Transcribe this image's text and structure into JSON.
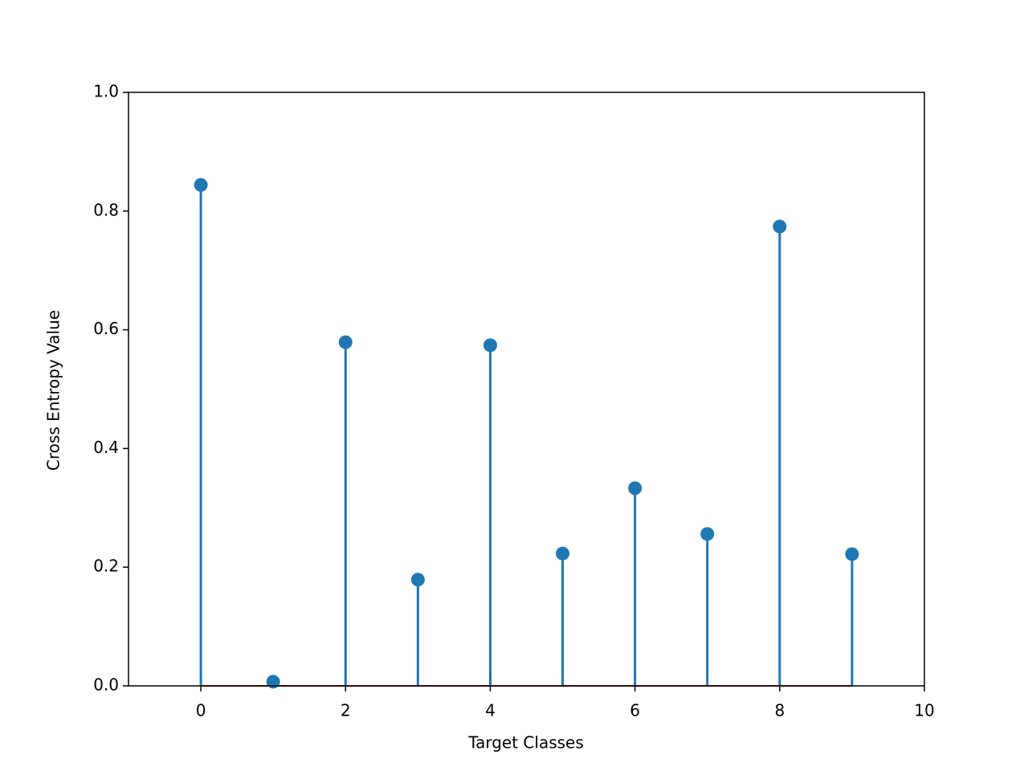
{
  "chart_data": {
    "type": "stem",
    "xlabel": "Target Classes",
    "ylabel": "Cross Entropy Value",
    "x": [
      0,
      1,
      2,
      3,
      4,
      5,
      6,
      7,
      8,
      9
    ],
    "values": [
      0.844,
      0.007,
      0.579,
      0.179,
      0.574,
      0.223,
      0.333,
      0.256,
      0.774,
      0.222
    ],
    "color": "#1f77b4",
    "baseline_color": "#d62728",
    "xlim": [
      -1,
      10
    ],
    "ylim": [
      0,
      1
    ],
    "xticks": [
      0,
      2,
      4,
      6,
      8,
      10
    ],
    "yticks": [
      {
        "value": 0,
        "label": "0.0"
      },
      0.2,
      0.4,
      0.6,
      0.8,
      {
        "value": 1,
        "label": "1.0"
      }
    ],
    "grid": false
  }
}
